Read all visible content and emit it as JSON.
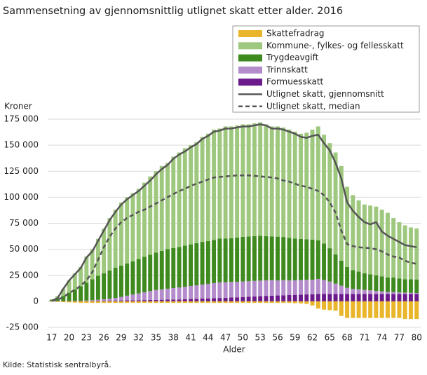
{
  "chart_data": {
    "type": "bar",
    "title": "Sammensetning av gjennomsnittlig utlignet skatt etter alder. 2016",
    "y_label": "Kroner",
    "x_label": "Alder",
    "source": "Kilde: Statistisk sentralbyrå.",
    "x": [
      17,
      18,
      19,
      20,
      21,
      22,
      23,
      24,
      25,
      26,
      27,
      28,
      29,
      30,
      31,
      32,
      33,
      34,
      35,
      36,
      37,
      38,
      39,
      40,
      41,
      42,
      43,
      44,
      45,
      46,
      47,
      48,
      49,
      50,
      51,
      52,
      53,
      54,
      55,
      56,
      57,
      58,
      59,
      60,
      61,
      62,
      63,
      64,
      65,
      66,
      67,
      68,
      69,
      70,
      71,
      72,
      73,
      74,
      75,
      76,
      77,
      78,
      79,
      80
    ],
    "xlim": [
      16.3,
      80.7
    ],
    "xticks": [
      17,
      20,
      23,
      26,
      29,
      32,
      35,
      38,
      41,
      44,
      47,
      50,
      53,
      56,
      59,
      62,
      65,
      68,
      71,
      74,
      77,
      80
    ],
    "ylim": [
      -25000,
      175000
    ],
    "yticks": [
      {
        "value": -25000,
        "label": "-25 000"
      },
      {
        "value": 0,
        "label": "0"
      },
      {
        "value": 25000,
        "label": "25 000"
      },
      {
        "value": 50000,
        "label": "50 000"
      },
      {
        "value": 75000,
        "label": "75 000"
      },
      {
        "value": 100000,
        "label": "100 000"
      },
      {
        "value": 125000,
        "label": "125 000"
      },
      {
        "value": 150000,
        "label": "150 000"
      },
      {
        "value": 175000,
        "label": "175 000"
      }
    ],
    "grid": true,
    "legend": "top-right",
    "series": [
      {
        "name": "Skattefradrag",
        "color": "#e9b52a",
        "values": [
          -300,
          -500,
          -800,
          -1000,
          -1200,
          -1500,
          -1500,
          -1500,
          -1500,
          -1500,
          -1500,
          -1500,
          -1500,
          -1500,
          -1500,
          -1500,
          -1500,
          -1500,
          -1500,
          -1500,
          -1500,
          -1500,
          -1500,
          -1500,
          -1500,
          -1500,
          -1500,
          -1500,
          -1500,
          -1500,
          -1500,
          -1500,
          -1500,
          -1500,
          -1500,
          -1500,
          -1500,
          -1500,
          -1500,
          -1500,
          -1500,
          -1500,
          -1800,
          -2000,
          -2500,
          -4000,
          -7000,
          -8000,
          -8500,
          -9000,
          -14000,
          -16000,
          -16000,
          -16000,
          -16000,
          -16000,
          -16000,
          -16000,
          -16000,
          -16000,
          -16000,
          -17000,
          -17000,
          -17000
        ]
      },
      {
        "name": "Kommune-, fylkes- og fellesskatt",
        "color": "#9fc87f",
        "values": [
          800,
          2800,
          6800,
          11700,
          15600,
          18500,
          25200,
          28900,
          35500,
          43000,
          50400,
          55800,
          60700,
          63600,
          65500,
          67400,
          71300,
          75200,
          78100,
          81500,
          82900,
          87800,
          90700,
          93500,
          95300,
          97100,
          100900,
          103200,
          106000,
          105800,
          107600,
          107400,
          107700,
          108000,
          107700,
          108400,
          109100,
          107300,
          105600,
          105900,
          105200,
          104000,
          102800,
          101100,
          102400,
          105700,
          109500,
          104500,
          101000,
          98000,
          91000,
          77000,
          72000,
          68500,
          66000,
          66000,
          66000,
          64000,
          62000,
          57200,
          54000,
          51700,
          49800,
          49000
        ]
      },
      {
        "name": "Trygdeavgift",
        "color": "#3e8a1e",
        "values": [
          1000,
          2000,
          5000,
          8000,
          11000,
          14000,
          17000,
          20000,
          23000,
          25000,
          27000,
          29000,
          30000,
          31000,
          32000,
          33000,
          34000,
          35000,
          36000,
          37000,
          38000,
          38500,
          39000,
          39500,
          40000,
          40500,
          41000,
          41000,
          41500,
          42000,
          42000,
          42000,
          42500,
          43000,
          43000,
          43000,
          43000,
          42500,
          42000,
          42000,
          41500,
          41000,
          40000,
          39500,
          39000,
          38500,
          37000,
          35000,
          32000,
          28000,
          24000,
          20000,
          18000,
          17000,
          16000,
          15500,
          15000,
          14500,
          14000,
          14000,
          13500,
          13000,
          13000,
          13000
        ]
      },
      {
        "name": "Trinnskatt",
        "color": "#b48ccc",
        "values": [
          0,
          0,
          0,
          0,
          100,
          200,
          400,
          700,
          1000,
          1500,
          2000,
          2500,
          3500,
          4500,
          5500,
          6500,
          7500,
          8500,
          9500,
          10000,
          10500,
          11000,
          11500,
          12000,
          12500,
          13000,
          13500,
          14000,
          14500,
          15000,
          15000,
          15000,
          15000,
          15000,
          15000,
          15000,
          15000,
          15000,
          15000,
          14500,
          14500,
          14000,
          14000,
          14000,
          14000,
          14000,
          14500,
          13500,
          12000,
          10000,
          8000,
          6000,
          5000,
          4500,
          4000,
          3500,
          3000,
          2500,
          2000,
          1800,
          1500,
          1300,
          1200,
          1000
        ]
      },
      {
        "name": "Formuesskatt",
        "color": "#6a1a8a",
        "values": [
          200,
          200,
          200,
          300,
          300,
          300,
          400,
          400,
          500,
          500,
          600,
          700,
          800,
          900,
          1000,
          1100,
          1200,
          1300,
          1400,
          1500,
          1600,
          1700,
          1800,
          2000,
          2200,
          2400,
          2600,
          2800,
          3000,
          3200,
          3400,
          3600,
          3800,
          4000,
          4300,
          4600,
          4900,
          5200,
          5400,
          5600,
          5800,
          6000,
          6200,
          6400,
          6600,
          6800,
          7000,
          7000,
          7000,
          7000,
          7000,
          7000,
          7000,
          7000,
          7000,
          7000,
          7000,
          7000,
          7000,
          7000,
          7000,
          7000,
          7000,
          7000
        ]
      },
      {
        "name": "Utlignet skatt, gjennomsnitt",
        "color": "#555555",
        "type": "line",
        "dashed": false,
        "values": [
          500,
          3000,
          12000,
          20000,
          26000,
          32000,
          42000,
          48000,
          58000,
          68000,
          78000,
          86000,
          93000,
          98000,
          102000,
          106000,
          111000,
          116000,
          122000,
          127000,
          131000,
          137000,
          141000,
          144000,
          148000,
          151000,
          156000,
          159000,
          163000,
          164000,
          166000,
          166000,
          167000,
          168000,
          168000,
          169000,
          170000,
          169000,
          166000,
          166000,
          165000,
          163000,
          161000,
          158000,
          157000,
          159000,
          160000,
          152000,
          145000,
          133000,
          118000,
          95000,
          87000,
          81000,
          76000,
          74000,
          76000,
          67000,
          63000,
          60000,
          57000,
          54000,
          53000,
          52000
        ]
      },
      {
        "name": "Utlignet skatt, median",
        "color": "#555555",
        "type": "line",
        "dashed": true,
        "values": [
          500,
          1500,
          4000,
          8000,
          11000,
          15000,
          20000,
          28000,
          40000,
          52000,
          62000,
          70000,
          76000,
          80000,
          83000,
          86000,
          88000,
          91000,
          94000,
          97000,
          100000,
          103000,
          106000,
          108000,
          111000,
          113000,
          115000,
          117000,
          119000,
          119500,
          120000,
          120500,
          121000,
          121000,
          121000,
          120500,
          120000,
          119500,
          119000,
          118000,
          116000,
          115000,
          113000,
          111000,
          110000,
          108000,
          106000,
          102000,
          95000,
          85000,
          68000,
          55000,
          53000,
          52000,
          51500,
          51000,
          50000,
          48000,
          45000,
          43000,
          42000,
          39000,
          37000,
          36000
        ]
      }
    ]
  }
}
